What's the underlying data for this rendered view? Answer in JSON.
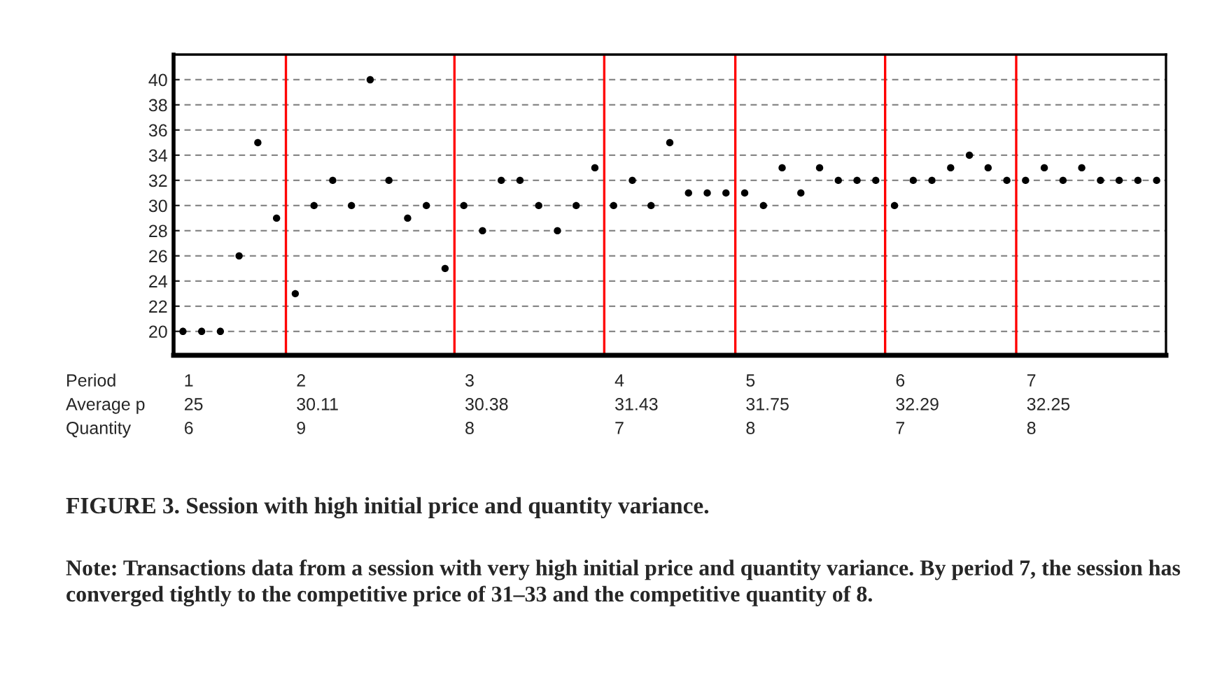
{
  "chart_data": {
    "type": "scatter",
    "title": "FIGURE 3. Session with high initial price and quantity variance.",
    "categories": [
      null,
      null,
      null,
      null,
      null,
      null,
      null,
      null,
      null,
      null,
      null,
      null,
      null,
      null,
      null,
      null,
      null,
      null,
      null,
      null,
      null,
      null,
      null,
      null,
      null,
      null,
      null,
      null,
      null,
      null,
      null,
      null,
      null,
      null,
      null,
      null,
      null,
      null,
      null,
      null,
      null,
      null,
      null,
      null,
      null,
      null,
      null,
      null,
      null,
      null,
      null,
      null,
      null
    ],
    "series": [
      {
        "color": "#000000",
        "values": [
          20,
          20,
          20,
          26,
          35,
          29,
          23,
          30,
          32,
          30,
          40,
          32,
          29,
          30,
          25,
          30,
          28,
          32,
          32,
          30,
          28,
          30,
          33,
          30,
          32,
          30,
          35,
          31,
          31,
          31,
          31,
          30,
          33,
          31,
          33,
          32,
          32,
          32,
          30,
          32,
          32,
          33,
          34,
          33,
          32,
          32,
          33,
          32,
          33,
          32,
          32,
          32,
          32
        ]
      }
    ],
    "ylim": [
      18.1,
      42
    ],
    "yticks": [
      20,
      22,
      24,
      26,
      28,
      30,
      32,
      34,
      36,
      38,
      40
    ],
    "grid": "y",
    "marker": "circle",
    "legend": false,
    "annotations": [
      "Period",
      "1",
      "2",
      "3",
      "4",
      "5",
      "6",
      "7",
      "Average p",
      "25",
      "30.11",
      "30.38",
      "31.43",
      "31.75",
      "32.29",
      "32.25",
      "Quantity",
      "6",
      "9",
      "8",
      "7",
      "8",
      "7",
      "8",
      "Note: Transactions data from a session with very high initial price and quantity variance. By period 7, the session has converged tightly to the competitive price of 31–33 and the competitive quantity of 8."
    ]
  }
}
